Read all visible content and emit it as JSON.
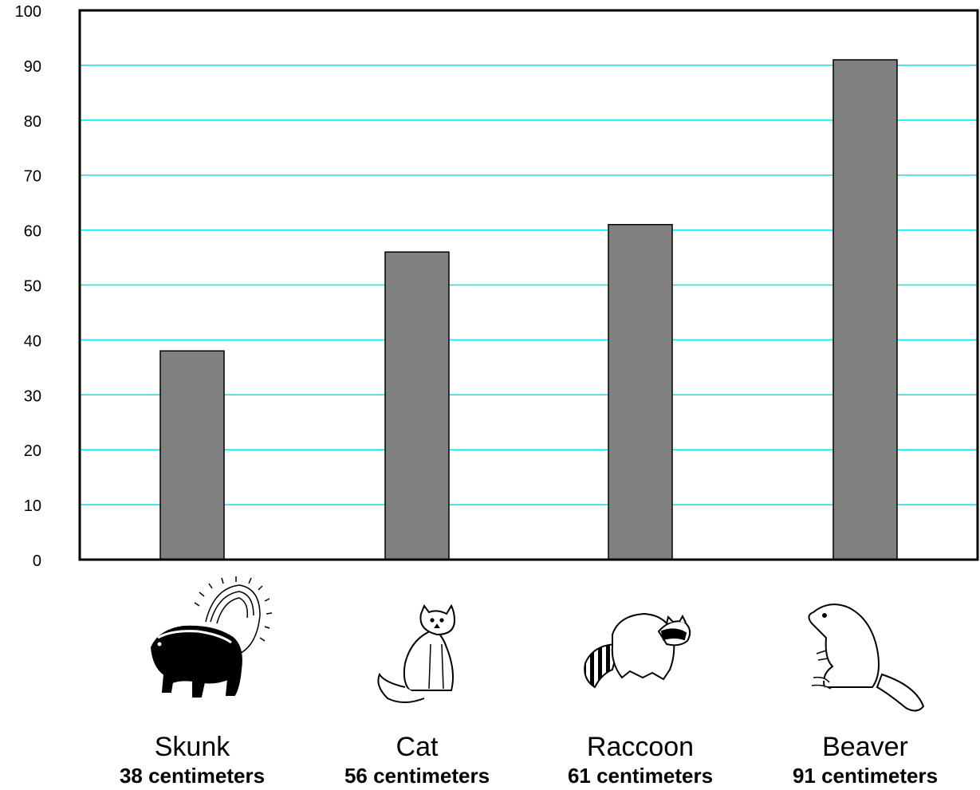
{
  "chart_data": {
    "type": "bar",
    "categories": [
      "Skunk",
      "Cat",
      "Raccoon",
      "Beaver"
    ],
    "values": [
      38,
      56,
      61,
      91
    ],
    "value_labels": [
      "38 centimeters",
      "56 centimeters",
      "61 centimeters",
      "91 centimeters"
    ],
    "icons": [
      "skunk-icon",
      "cat-icon",
      "raccoon-icon",
      "beaver-icon"
    ],
    "title": "",
    "xlabel": "",
    "ylabel": "",
    "ylim": [
      0,
      100
    ],
    "yticks": [
      0,
      10,
      20,
      30,
      40,
      50,
      60,
      70,
      80,
      90,
      100
    ],
    "grid": true,
    "gridline_color": "#00e5e5",
    "bar_color": "#808080",
    "legend": "none"
  }
}
